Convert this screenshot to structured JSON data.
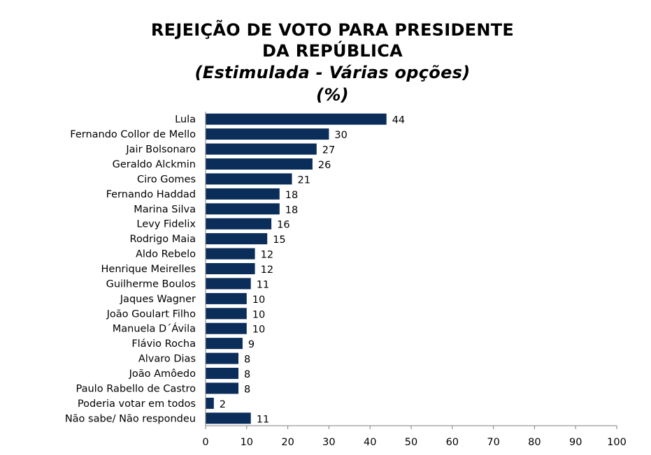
{
  "title_lines": [
    "REJEIÇÃO DE VOTO PARA PRESIDENTE",
    "DA REPÚBLICA"
  ],
  "subtitle_lines": [
    "(Estimulada - Várias opções)",
    "(%)"
  ],
  "chart_data": {
    "type": "bar",
    "orientation": "horizontal",
    "title": "REJEIÇÃO DE VOTO PARA PRESIDENTE DA REPÚBLICA",
    "subtitle": "(Estimulada - Várias opções) (%)",
    "categories": [
      "Lula",
      "Fernando Collor de Mello",
      "Jair Bolsonaro",
      "Geraldo Alckmin",
      "Ciro Gomes",
      "Fernando Haddad",
      "Marina Silva",
      "Levy Fidelix",
      "Rodrigo Maia",
      "Aldo Rebelo",
      "Henrique Meirelles",
      "Guilherme Boulos",
      "Jaques Wagner",
      "João Goulart Filho",
      "Manuela D´Ávila",
      "Flávio Rocha",
      "Alvaro Dias",
      "João Amôedo",
      "Paulo Rabello de Castro",
      "Poderia votar em todos",
      "Não sabe/ Não respondeu"
    ],
    "values": [
      44,
      30,
      27,
      26,
      21,
      18,
      18,
      16,
      15,
      12,
      12,
      11,
      10,
      10,
      10,
      9,
      8,
      8,
      8,
      2,
      11
    ],
    "xlim": [
      0,
      100
    ],
    "xticks": [
      0,
      10,
      20,
      30,
      40,
      50,
      60,
      70,
      80,
      90,
      100
    ],
    "bar_color": "#0b2d5a",
    "grid": false,
    "legend": "none"
  }
}
